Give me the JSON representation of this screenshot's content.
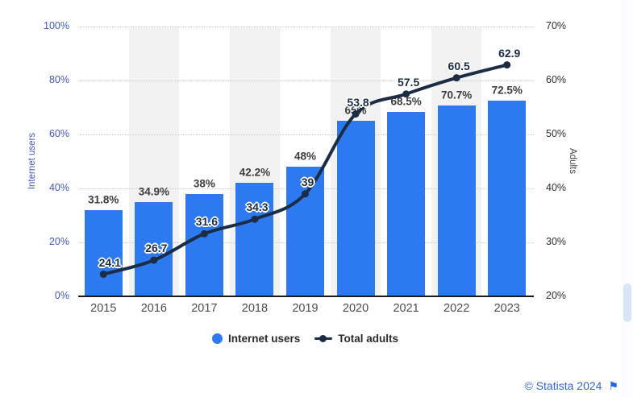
{
  "chart_data": {
    "type": "bar",
    "categories": [
      "2015",
      "2016",
      "2017",
      "2018",
      "2019",
      "2020",
      "2021",
      "2022",
      "2023"
    ],
    "series": [
      {
        "name": "Internet users",
        "type": "bar",
        "axis": "left",
        "values": [
          31.8,
          34.9,
          38,
          42.2,
          48,
          65,
          68.5,
          70.7,
          72.5
        ],
        "labels": [
          "31.8%",
          "34.9%",
          "38%",
          "42.2%",
          "48%",
          "65%",
          "68.5%",
          "70.7%",
          "72.5%"
        ],
        "color": "#2d7af0"
      },
      {
        "name": "Total adults",
        "type": "line",
        "axis": "right",
        "values": [
          24.1,
          26.7,
          31.6,
          34.3,
          39,
          53.8,
          57.5,
          60.5,
          62.9
        ],
        "labels": [
          "24.1",
          "26.7",
          "31.6",
          "34.3",
          "39",
          "53.8",
          "57.5",
          "60.5",
          "62.9"
        ],
        "color": "#1b2d44"
      }
    ],
    "left_axis": {
      "title": "Internet users",
      "min": 0,
      "max": 100,
      "tick_values": [
        0,
        20,
        40,
        60,
        80,
        100
      ],
      "tick_suffix": "%",
      "color": "#4356c4"
    },
    "right_axis": {
      "title": "Adults",
      "min": 20,
      "max": 70,
      "tick_values": [
        20,
        30,
        40,
        50,
        60,
        70
      ],
      "tick_suffix": "%",
      "color": "#2e2e2e"
    },
    "legend": [
      {
        "label": "Internet users",
        "marker": "circle",
        "color": "#2d7af0"
      },
      {
        "label": "Total adults",
        "marker": "line-dot",
        "color": "#1b2d44"
      }
    ],
    "grid": "dotted-horizontal",
    "band_color": "#f2f2f2",
    "banded_columns": [
      1,
      3,
      5,
      7
    ]
  },
  "footer": {
    "copyright": "© Statista 2024",
    "flag_icon": "⚑"
  }
}
